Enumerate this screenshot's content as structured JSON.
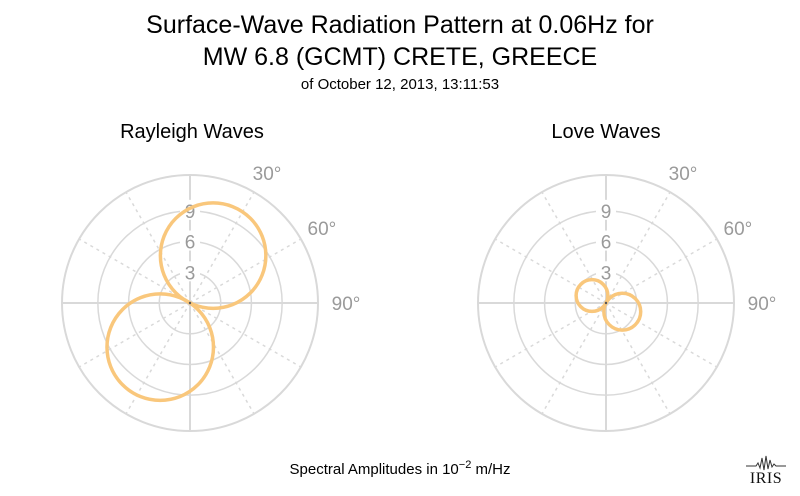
{
  "title": {
    "line1": "Surface-Wave Radiation Pattern at 0.06Hz for",
    "line2": "MW 6.8 (GCMT) CRETE, GREECE",
    "subtitle": "of October 12, 2013, 13:11:53"
  },
  "footer": {
    "prefix": "Spectral Amplitudes in ",
    "base": "10",
    "exponent": "−2",
    "unit": " m/Hz"
  },
  "logo": {
    "text": "IRIS"
  },
  "colors": {
    "pattern": "#f9c77c",
    "grid": "#d9d9d9",
    "labels": "#9a9a9a"
  },
  "chart_data": [
    {
      "type": "polar",
      "title": "Rayleigh Waves",
      "radial_ticks": [
        3,
        6,
        9
      ],
      "radial_tick_labels": [
        "3",
        "6",
        "9"
      ],
      "radial_max": 12.5,
      "angle_ticks": [
        "30°",
        "60°",
        "90°"
      ],
      "pattern": {
        "form": "two-lobe",
        "lobes": [
          {
            "azimuth_deg": 26,
            "amplitude": 10.3
          },
          {
            "azimuth_deg": 214,
            "amplitude": 10.4
          }
        ]
      }
    },
    {
      "type": "polar",
      "title": "Love Waves",
      "radial_ticks": [
        3,
        6,
        9
      ],
      "radial_tick_labels": [
        "3",
        "6",
        "9"
      ],
      "radial_max": 12.5,
      "angle_ticks": [
        "30°",
        "60°",
        "90°"
      ],
      "pattern": {
        "form": "two-lobe",
        "lobes": [
          {
            "azimuth_deg": 298,
            "amplitude": 3.1
          },
          {
            "azimuth_deg": 118,
            "amplitude": 3.6
          }
        ]
      }
    }
  ]
}
